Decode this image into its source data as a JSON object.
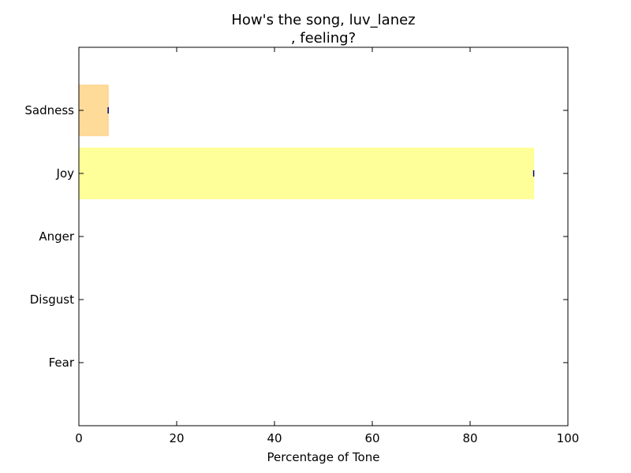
{
  "chart_data": {
    "type": "bar",
    "orientation": "horizontal",
    "title_line1": "How's the song, luv_lanez",
    "title_line2": ", feeling?",
    "xlabel": "Percentage of Tone",
    "ylabel": "",
    "xlim": [
      0,
      100
    ],
    "xticks": [
      "0",
      "20",
      "40",
      "60",
      "80",
      "100"
    ],
    "categories": [
      "Fear",
      "Disgust",
      "Anger",
      "Joy",
      "Sadness"
    ],
    "values": [
      0,
      0,
      0,
      93,
      6
    ],
    "colors": [
      "#ffffff",
      "#ffffff",
      "#ffffff",
      "#ffff99",
      "#ffdb99"
    ],
    "edge_colors": [
      "#ffffff",
      "#ffffff",
      "#ffffff",
      "#ffff80",
      "#ffcc80"
    ],
    "error_bar_color": "#00007f",
    "grid": false,
    "legend": "none"
  }
}
